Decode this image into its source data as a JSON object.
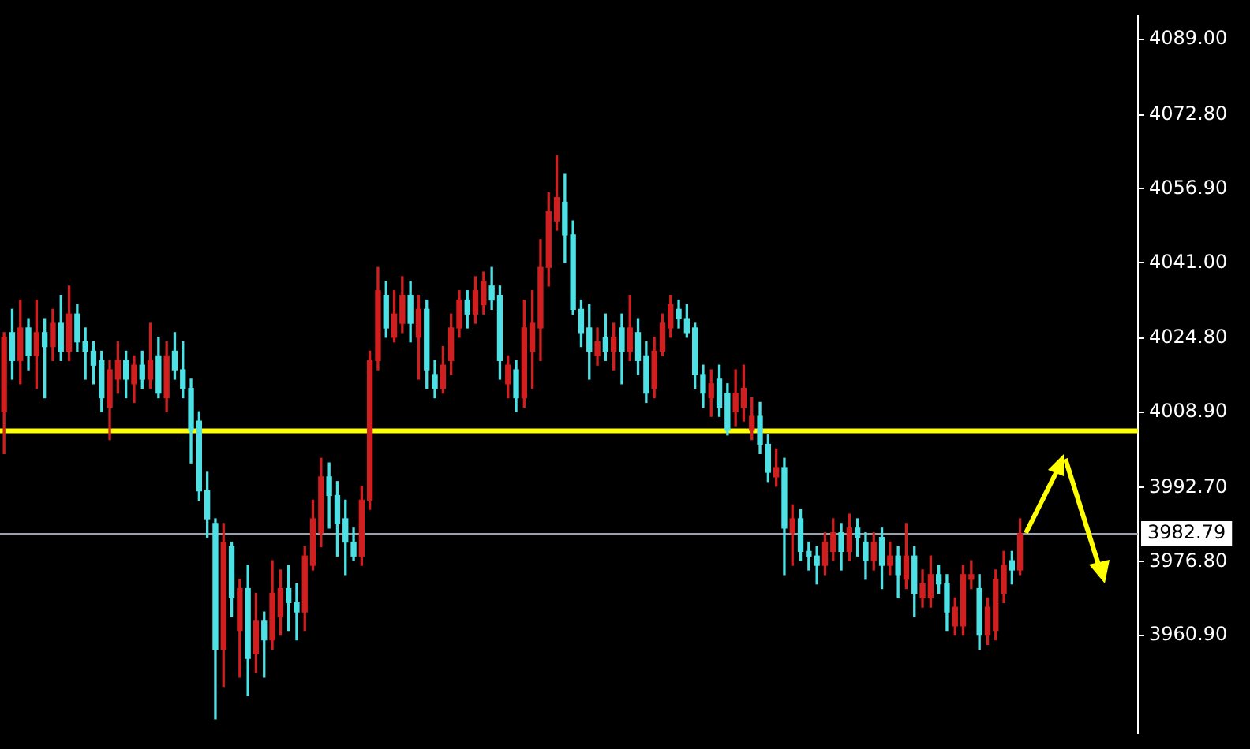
{
  "chart_data": {
    "type": "candlestick",
    "categories": [
      null,
      null,
      null,
      null,
      null,
      null,
      null,
      null,
      null,
      null,
      null,
      null,
      null,
      null,
      null,
      null,
      null,
      null,
      null,
      null,
      null,
      null,
      null,
      null,
      null,
      null,
      null,
      null,
      null,
      null,
      null,
      null,
      null,
      null,
      null,
      null,
      null,
      null,
      null,
      null,
      null,
      null,
      null,
      null,
      null,
      null,
      null,
      null,
      null,
      null,
      null,
      null,
      null,
      null,
      null,
      null,
      null,
      null,
      null,
      null,
      null,
      null,
      null,
      null,
      null,
      null,
      null,
      null,
      null,
      null,
      null,
      null,
      null,
      null,
      null,
      null,
      null,
      null,
      null,
      null,
      null,
      null,
      null,
      null,
      null,
      null,
      null,
      null,
      null,
      null,
      null,
      null,
      null,
      null,
      null,
      null,
      null,
      null,
      null,
      null,
      null,
      null,
      null,
      null,
      null,
      null,
      null,
      null,
      null,
      null,
      null,
      null,
      null,
      null,
      null,
      null,
      null,
      null,
      null,
      null,
      null,
      null,
      null,
      null,
      null,
      null,
      null,
      null,
      null,
      null,
      null,
      null,
      null,
      null,
      null,
      null,
      null,
      null,
      null,
      null
    ],
    "ohlc": [
      [
        4009,
        4026,
        4000,
        4025
      ],
      [
        4026,
        4031,
        4016,
        4020
      ],
      [
        4020,
        4033,
        4015,
        4027
      ],
      [
        4027,
        4029,
        4018,
        4021
      ],
      [
        4021,
        4033,
        4014,
        4026
      ],
      [
        4026,
        4029,
        4012,
        4023
      ],
      [
        4023,
        4031,
        4020,
        4028
      ],
      [
        4028,
        4034,
        4020,
        4022
      ],
      [
        4022,
        4036,
        4020,
        4030
      ],
      [
        4030,
        4032,
        4022,
        4024
      ],
      [
        4024,
        4027,
        4016,
        4022
      ],
      [
        4022,
        4024,
        4015,
        4019
      ],
      [
        4020,
        4022,
        4009,
        4012
      ],
      [
        4010,
        4020,
        4003,
        4018
      ],
      [
        4016,
        4024,
        4013,
        4020
      ],
      [
        4020,
        4022,
        4012,
        4016
      ],
      [
        4015,
        4021,
        4011,
        4019
      ],
      [
        4019,
        4022,
        4014,
        4016
      ],
      [
        4016,
        4028,
        4014,
        4020
      ],
      [
        4021,
        4025,
        4012,
        4013
      ],
      [
        4012,
        4024,
        4009,
        4021
      ],
      [
        4022,
        4026,
        4016,
        4018
      ],
      [
        4018,
        4024,
        4012,
        4014
      ],
      [
        4014,
        4016,
        3998,
        4005
      ],
      [
        4007,
        4009,
        3990,
        3992
      ],
      [
        3992,
        3996,
        3982,
        3986
      ],
      [
        3985,
        3986,
        3943,
        3958
      ],
      [
        3958,
        3985,
        3950,
        3981
      ],
      [
        3980,
        3981,
        3965,
        3969
      ],
      [
        3962,
        3973,
        3952,
        3971
      ],
      [
        3971,
        3976,
        3948,
        3956
      ],
      [
        3957,
        3970,
        3953,
        3964
      ],
      [
        3964,
        3966,
        3952,
        3960
      ],
      [
        3960,
        3977,
        3958,
        3970
      ],
      [
        3965,
        3975,
        3961,
        3971
      ],
      [
        3971,
        3976,
        3962,
        3968
      ],
      [
        3968,
        3972,
        3960,
        3966
      ],
      [
        3966,
        3980,
        3962,
        3978
      ],
      [
        3976,
        3990,
        3975,
        3986
      ],
      [
        3983,
        3999,
        3980,
        3995
      ],
      [
        3995,
        3998,
        3984,
        3991
      ],
      [
        3991,
        3994,
        3978,
        3985
      ],
      [
        3986,
        3990,
        3974,
        3981
      ],
      [
        3981,
        3984,
        3977,
        3978
      ],
      [
        3978,
        3993,
        3976,
        3990
      ],
      [
        3990,
        4022,
        3988,
        4020
      ],
      [
        4020,
        4040,
        4018,
        4035
      ],
      [
        4034,
        4037,
        4025,
        4027
      ],
      [
        4025,
        4035,
        4024,
        4030
      ],
      [
        4028,
        4038,
        4026,
        4034
      ],
      [
        4034,
        4037,
        4024,
        4028
      ],
      [
        4025,
        4034,
        4016,
        4031
      ],
      [
        4031,
        4033,
        4014,
        4018
      ],
      [
        4017,
        4020,
        4012,
        4014
      ],
      [
        4014,
        4023,
        4013,
        4019
      ],
      [
        4020,
        4030,
        4017,
        4027
      ],
      [
        4027,
        4035,
        4025,
        4033
      ],
      [
        4033,
        4035,
        4027,
        4030
      ],
      [
        4030,
        4038,
        4028,
        4035
      ],
      [
        4032,
        4039,
        4030,
        4037
      ],
      [
        4036,
        4040,
        4031,
        4033
      ],
      [
        4034,
        4036,
        4016,
        4020
      ],
      [
        4015,
        4021,
        4012,
        4019
      ],
      [
        4018,
        4020,
        4009,
        4012
      ],
      [
        4012,
        4033,
        4010,
        4027
      ],
      [
        4022,
        4035,
        4014,
        4028
      ],
      [
        4027,
        4046,
        4020,
        4040
      ],
      [
        4040,
        4056,
        4036,
        4052
      ],
      [
        4050,
        4064,
        4048,
        4055
      ],
      [
        4054,
        4060,
        4041,
        4047
      ],
      [
        4047,
        4050,
        4030,
        4031
      ],
      [
        4031,
        4033,
        4023,
        4026
      ],
      [
        4027,
        4032,
        4016,
        4022
      ],
      [
        4021,
        4027,
        4019,
        4024
      ],
      [
        4025,
        4030,
        4020,
        4022
      ],
      [
        4022,
        4028,
        4018,
        4025
      ],
      [
        4027,
        4030,
        4015,
        4022
      ],
      [
        4022,
        4034,
        4020,
        4027
      ],
      [
        4026,
        4029,
        4017,
        4020
      ],
      [
        4021,
        4024,
        4011,
        4013
      ],
      [
        4014,
        4025,
        4012,
        4022
      ],
      [
        4022,
        4030,
        4021,
        4028
      ],
      [
        4027,
        4034,
        4025,
        4032
      ],
      [
        4031,
        4033,
        4027,
        4029
      ],
      [
        4029,
        4032,
        4025,
        4026
      ],
      [
        4027,
        4028,
        4014,
        4017
      ],
      [
        4017,
        4019,
        4010,
        4013
      ],
      [
        4012,
        4018,
        4008,
        4015
      ],
      [
        4016,
        4019,
        4008,
        4010
      ],
      [
        4013,
        4015,
        4004,
        4005
      ],
      [
        4009,
        4018,
        4006,
        4013
      ],
      [
        4010,
        4019,
        4007,
        4014
      ],
      [
        4005,
        4012,
        4003,
        4008
      ],
      [
        4008,
        4011,
        4000,
        4002
      ],
      [
        4002,
        4004,
        3994,
        3996
      ],
      [
        3995,
        4001,
        3993,
        3997
      ],
      [
        3997,
        3999,
        3974,
        3984
      ],
      [
        3983,
        3989,
        3976,
        3986
      ],
      [
        3986,
        3988,
        3977,
        3979
      ],
      [
        3979,
        3981,
        3975,
        3978
      ],
      [
        3978,
        3980,
        3972,
        3976
      ],
      [
        3976,
        3983,
        3974,
        3981
      ],
      [
        3979,
        3986,
        3977,
        3983
      ],
      [
        3983,
        3985,
        3975,
        3979
      ],
      [
        3979,
        3987,
        3977,
        3984
      ],
      [
        3984,
        3986,
        3978,
        3982
      ],
      [
        3981,
        3983,
        3973,
        3977
      ],
      [
        3977,
        3983,
        3975,
        3981
      ],
      [
        3982,
        3984,
        3971,
        3976
      ],
      [
        3976,
        3981,
        3974,
        3978
      ],
      [
        3978,
        3980,
        3969,
        3974
      ],
      [
        3973,
        3985,
        3971,
        3978
      ],
      [
        3978,
        3980,
        3965,
        3970
      ],
      [
        3969,
        3975,
        3967,
        3972
      ],
      [
        3969,
        3978,
        3967,
        3974
      ],
      [
        3974,
        3976,
        3970,
        3972
      ],
      [
        3972,
        3974,
        3962,
        3966
      ],
      [
        3963,
        3969,
        3961,
        3967
      ],
      [
        3963,
        3976,
        3961,
        3974
      ],
      [
        3973,
        3977,
        3971,
        3974
      ],
      [
        3971,
        3974,
        3958,
        3961
      ],
      [
        3961,
        3969,
        3959,
        3967
      ],
      [
        3962,
        3975,
        3960,
        3973
      ],
      [
        3970,
        3979,
        3968,
        3976
      ],
      [
        3977,
        3979,
        3972,
        3975
      ],
      [
        3975,
        3986,
        3974,
        3982.79
      ],
      null,
      null,
      null,
      null,
      null,
      null,
      null,
      null,
      null,
      null,
      null,
      null,
      null,
      null
    ],
    "colors": [
      "#d11f1f",
      "#4de1e6",
      "#d11f1f",
      "#4de1e6",
      "#d11f1f",
      "#4de1e6",
      "#d11f1f",
      "#4de1e6",
      "#d11f1f",
      "#4de1e6",
      "#4de1e6",
      "#4de1e6",
      "#4de1e6",
      "#d11f1f",
      "#d11f1f",
      "#4de1e6",
      "#d11f1f",
      "#4de1e6",
      "#d11f1f",
      "#4de1e6",
      "#d11f1f",
      "#4de1e6",
      "#4de1e6",
      "#4de1e6",
      "#4de1e6",
      "#4de1e6",
      "#4de1e6",
      "#d11f1f",
      "#4de1e6",
      "#d11f1f",
      "#4de1e6",
      "#d11f1f",
      "#4de1e6",
      "#d11f1f",
      "#d11f1f",
      "#4de1e6",
      "#4de1e6",
      "#d11f1f",
      "#d11f1f",
      "#d11f1f",
      "#4de1e6",
      "#4de1e6",
      "#4de1e6",
      "#4de1e6",
      "#d11f1f",
      "#d11f1f",
      "#d11f1f",
      "#4de1e6",
      "#d11f1f",
      "#d11f1f",
      "#4de1e6",
      "#d11f1f",
      "#4de1e6",
      "#4de1e6",
      "#d11f1f",
      "#d11f1f",
      "#d11f1f",
      "#4de1e6",
      "#d11f1f",
      "#d11f1f",
      "#4de1e6",
      "#4de1e6",
      "#d11f1f",
      "#4de1e6",
      "#d11f1f",
      "#d11f1f",
      "#d11f1f",
      "#d11f1f",
      "#d11f1f",
      "#4de1e6",
      "#4de1e6",
      "#4de1e6",
      "#4de1e6",
      "#d11f1f",
      "#4de1e6",
      "#d11f1f",
      "#4de1e6",
      "#d11f1f",
      "#4de1e6",
      "#4de1e6",
      "#d11f1f",
      "#d11f1f",
      "#d11f1f",
      "#4de1e6",
      "#4de1e6",
      "#4de1e6",
      "#4de1e6",
      "#d11f1f",
      "#4de1e6",
      "#4de1e6",
      "#d11f1f",
      "#d11f1f",
      "#d11f1f",
      "#4de1e6",
      "#4de1e6",
      "#d11f1f",
      "#4de1e6",
      "#d11f1f",
      "#4de1e6",
      "#4de1e6",
      "#4de1e6",
      "#d11f1f",
      "#d11f1f",
      "#4de1e6",
      "#d11f1f",
      "#4de1e6",
      "#4de1e6",
      "#d11f1f",
      "#4de1e6",
      "#d11f1f",
      "#4de1e6",
      "#d11f1f",
      "#4de1e6",
      "#d11f1f",
      "#d11f1f",
      "#4de1e6",
      "#4de1e6",
      "#d11f1f",
      "#d11f1f",
      "#d11f1f",
      "#4de1e6",
      "#d11f1f",
      "#d11f1f",
      "#d11f1f",
      "#4de1e6",
      "#d11f1f",
      null,
      null,
      null,
      null,
      null,
      null,
      null,
      null,
      null,
      null,
      null,
      null,
      null,
      null
    ],
    "ylim": [
      3940,
      4094
    ],
    "yticks": [
      {
        "value": 3960.9,
        "label": "3960.90"
      },
      {
        "value": 3976.8,
        "label": "3976.80"
      },
      {
        "value": 3992.7,
        "label": "3992.70"
      },
      {
        "value": 4008.9,
        "label": "4008.90"
      },
      {
        "value": 4024.8,
        "label": "4024.80"
      },
      {
        "value": 4041,
        "label": "4041.00"
      },
      {
        "value": 4056.9,
        "label": "4056.90"
      },
      {
        "value": 4072.8,
        "label": "4072.80"
      },
      {
        "value": 4089,
        "label": "4089.00"
      }
    ],
    "ref_lines": [
      {
        "axis": "y",
        "value": 4004.9,
        "color": "#ffff00"
      },
      {
        "axis": "y",
        "value": 3982.79,
        "label": "3982.79",
        "color": "#9aa3ab"
      }
    ],
    "tick_labels": "y",
    "legend": false,
    "grid": false
  }
}
